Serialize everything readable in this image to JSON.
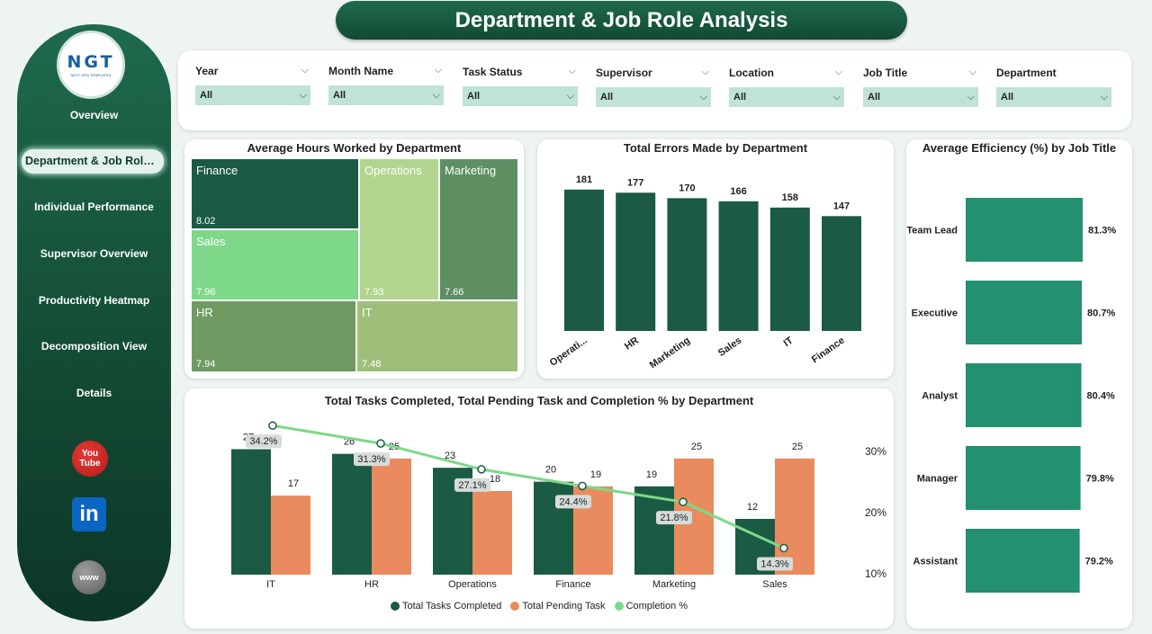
{
  "header": {
    "title": "Department & Job Role Analysis"
  },
  "logo": {
    "text": "NGT",
    "subtext": "NEXT GEN TEMPLATES"
  },
  "nav": {
    "items": [
      {
        "label": "Overview"
      },
      {
        "label": "Department & Job Role Analysis",
        "active": true
      },
      {
        "label": "Individual Performance"
      },
      {
        "label": "Supervisor Overview"
      },
      {
        "label": "Productivity Heatmap"
      },
      {
        "label": "Decomposition View"
      },
      {
        "label": "Details"
      }
    ],
    "social": [
      {
        "name": "youtube-icon",
        "text": "You Tube"
      },
      {
        "name": "linkedin-icon",
        "text": "in"
      },
      {
        "name": "web-icon",
        "text": "www"
      }
    ]
  },
  "filters": [
    {
      "label": "Year",
      "value": "All"
    },
    {
      "label": "Month Name",
      "value": "All"
    },
    {
      "label": "Task Status",
      "value": "All"
    },
    {
      "label": "Supervisor",
      "value": "All"
    },
    {
      "label": "Location",
      "value": "All"
    },
    {
      "label": "Job Title",
      "value": "All"
    },
    {
      "label": "Department",
      "value": "All"
    }
  ],
  "treemap": {
    "title": "Average Hours Worked by Department",
    "items": [
      {
        "name": "Finance",
        "value": "8.02",
        "color": "#1b5a43"
      },
      {
        "name": "Operations",
        "value": "7.93",
        "color": "#b1d58e"
      },
      {
        "name": "Marketing",
        "value": "7.66",
        "color": "#5d8f62"
      },
      {
        "name": "Sales",
        "value": "7.96",
        "color": "#7dd88a"
      },
      {
        "name": "HR",
        "value": "7.94",
        "color": "#6f9a61"
      },
      {
        "name": "IT",
        "value": "7.48",
        "color": "#9ebf79"
      }
    ]
  },
  "errors_chart": {
    "title": "Total Errors Made by Department",
    "chart_data": {
      "type": "bar",
      "categories": [
        "Operati...",
        "HR",
        "Marketing",
        "Sales",
        "IT",
        "Finance"
      ],
      "values": [
        181,
        177,
        170,
        166,
        158,
        147
      ],
      "ylim": [
        0,
        190
      ],
      "color": "#1b5a43"
    }
  },
  "efficiency_chart": {
    "title": "Average Efficiency (%) by Job Title",
    "chart_data": {
      "type": "bar",
      "orientation": "horizontal",
      "categories": [
        "Team Lead",
        "Executive",
        "Analyst",
        "Manager",
        "Assistant"
      ],
      "values": [
        81.3,
        80.7,
        80.4,
        79.8,
        79.2
      ],
      "labels": [
        "81.3%",
        "80.7%",
        "80.4%",
        "79.8%",
        "79.2%"
      ],
      "xlim": [
        0,
        100
      ],
      "color": "#23906f"
    }
  },
  "tasks_chart": {
    "title": "Total Tasks Completed, Total Pending Task and Completion % by Department",
    "chart_data": {
      "type": "bar",
      "categories": [
        "IT",
        "HR",
        "Operations",
        "Finance",
        "Marketing",
        "Sales"
      ],
      "series": [
        {
          "name": "Total Tasks Completed",
          "values": [
            27,
            26,
            23,
            20,
            19,
            12
          ],
          "color": "#1b5a43"
        },
        {
          "name": "Total Pending Task",
          "values": [
            17,
            25,
            18,
            19,
            25,
            25
          ],
          "color": "#e98b5e"
        },
        {
          "name": "Completion %",
          "type": "line",
          "values": [
            34.2,
            31.3,
            27.1,
            24.4,
            21.8,
            14.3
          ],
          "labels": [
            "34.2%",
            "31.3%",
            "27.1%",
            "24.4%",
            "21.8%",
            "14.3%"
          ],
          "color": "#7dd88a"
        }
      ],
      "bar_ylim": [
        0,
        30
      ],
      "secondary_axis": {
        "ticks": [
          "30%",
          "20%",
          "10%"
        ],
        "range": [
          10,
          30
        ]
      }
    }
  }
}
